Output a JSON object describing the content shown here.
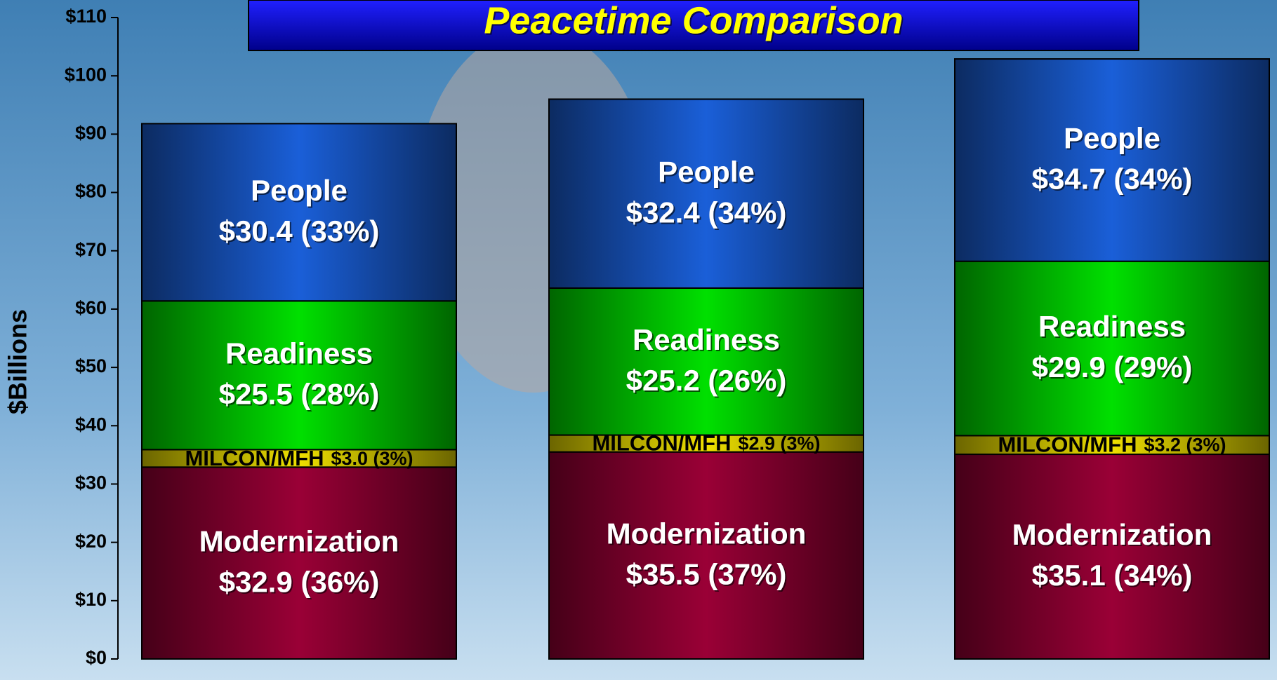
{
  "chart_data": {
    "type": "stacked-bar",
    "title": "Peacetime Comparison",
    "y_label": "$Billions",
    "categories": [
      null,
      null,
      null
    ],
    "series": [
      {
        "name": "Modernization",
        "color": "#9a0036",
        "values": [
          32.9,
          35.5,
          35.1
        ],
        "value_labels": [
          "$32.9 (36%)",
          "$35.5 (37%)",
          "$35.1 (34%)"
        ]
      },
      {
        "name": "MILCON/MFH",
        "color": "#eee000",
        "values": [
          3.0,
          2.9,
          3.2
        ],
        "value_labels": [
          "$3.0 (3%)",
          "$2.9 (3%)",
          "$3.2 (3%)"
        ]
      },
      {
        "name": "Readiness",
        "color": "#00e000",
        "values": [
          25.5,
          25.2,
          29.9
        ],
        "value_labels": [
          "$25.5 (28%)",
          "$25.2 (26%)",
          "$29.9 (29%)"
        ]
      },
      {
        "name": "People",
        "color": "#1a5fd8",
        "values": [
          30.4,
          32.4,
          34.7
        ],
        "value_labels": [
          "$30.4 (33%)",
          "$32.4 (34%)",
          "$34.7 (34%)"
        ]
      }
    ],
    "ylim": [
      0,
      110
    ],
    "yticks": [
      {
        "value": 0,
        "label": "$0"
      },
      {
        "value": 10,
        "label": "$10"
      },
      {
        "value": 20,
        "label": "$20"
      },
      {
        "value": 30,
        "label": "$30"
      },
      {
        "value": 40,
        "label": "$40"
      },
      {
        "value": 50,
        "label": "$50"
      },
      {
        "value": 60,
        "label": "$60"
      },
      {
        "value": 70,
        "label": "$70"
      },
      {
        "value": 80,
        "label": "$80"
      },
      {
        "value": 90,
        "label": "$90"
      },
      {
        "value": 100,
        "label": "$100"
      },
      {
        "value": 110,
        "label": "$110"
      }
    ]
  }
}
